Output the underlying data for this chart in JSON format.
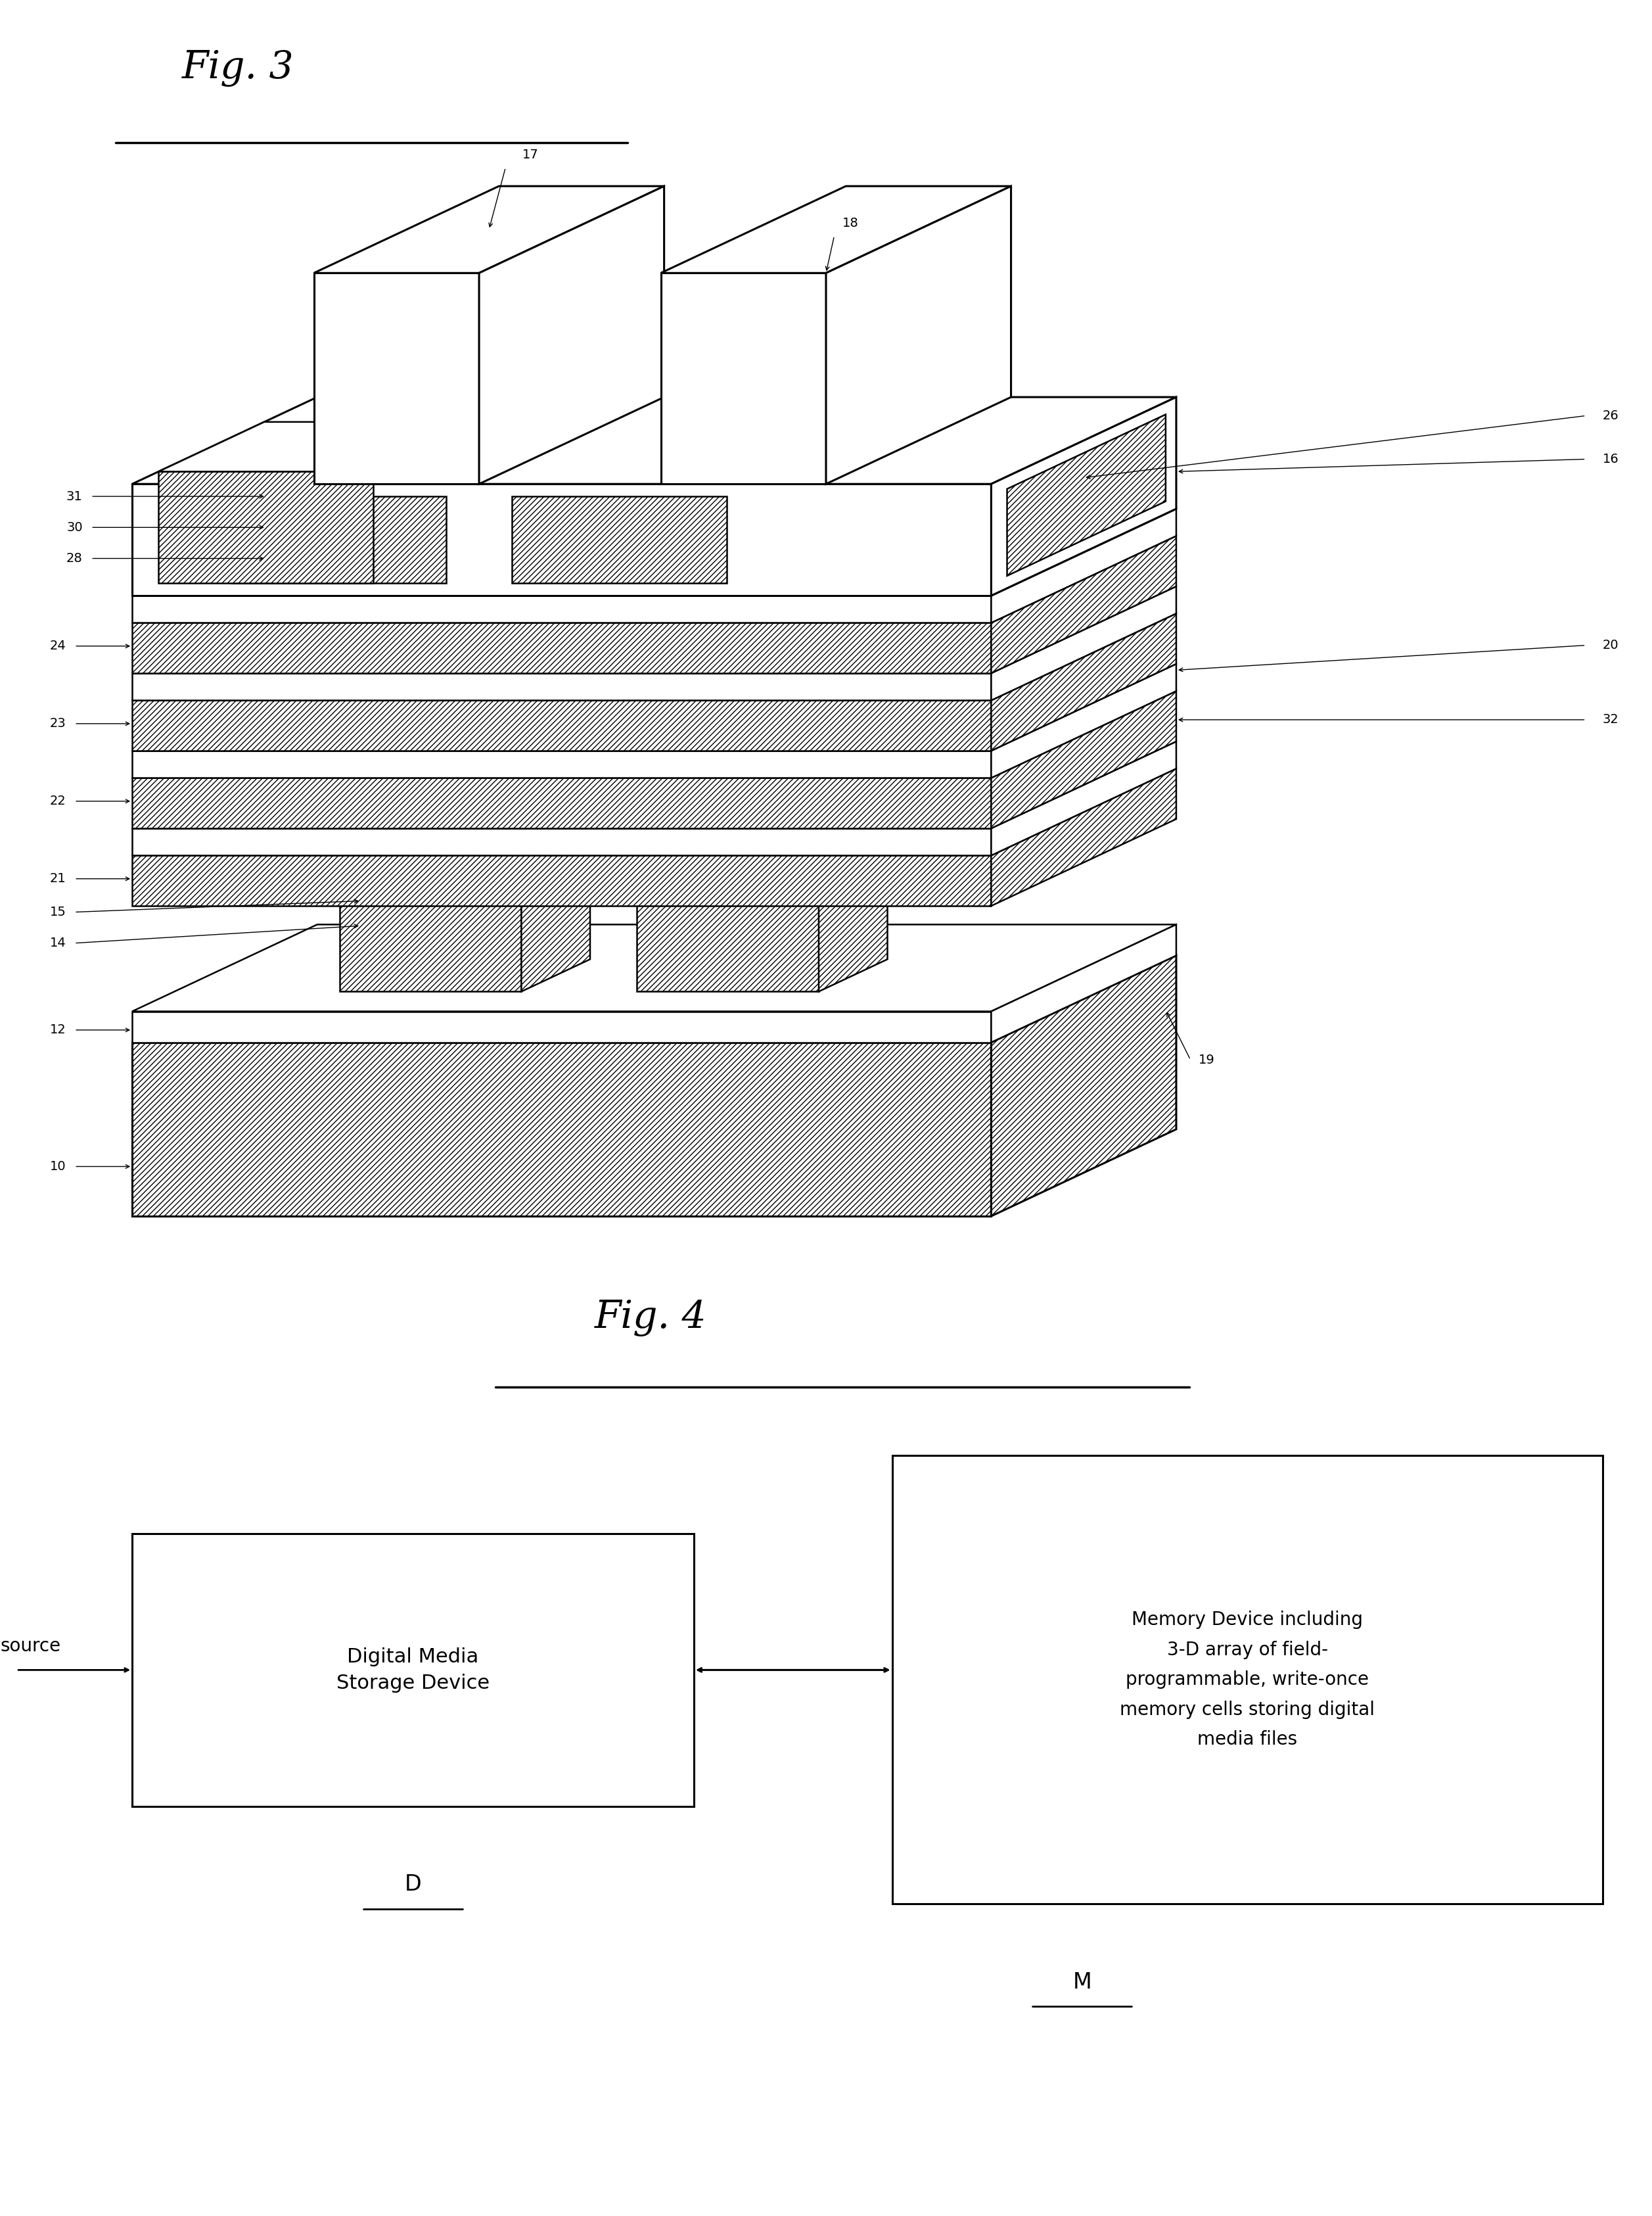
{
  "fig_width": 25.14,
  "fig_height": 33.71,
  "bg_color": "#ffffff",
  "fig3_label": "Fig. 3",
  "fig4_label": "Fig. 4",
  "box_D_label": "Digital Media\nStorage Device",
  "box_D_sublabel": "D",
  "box_M_label": "Memory Device including\n3-D array of field-\nprogrammable, write-once\nmemory cells storing digital\nmedia files",
  "box_M_sublabel": "M",
  "source_label": "source"
}
